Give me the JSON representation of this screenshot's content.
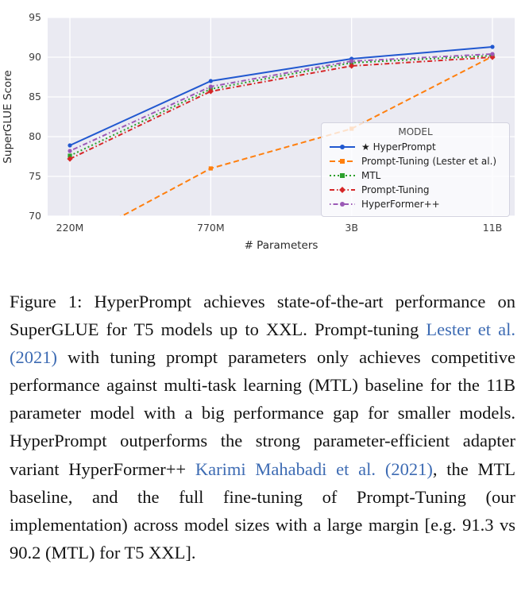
{
  "figure": {
    "citation_color": "#3d6bb3",
    "caption_segments": [
      {
        "style": "normal",
        "text": "Figure 1:  HyperPrompt achieves state-of-the-art performance on SuperGLUE for T5 models up to XXL. Prompt-tuning "
      },
      {
        "style": "cite",
        "text": "Lester et al. (2021)"
      },
      {
        "style": "normal",
        "text": " with tuning prompt parameters only achieves competitive performance against multi-task learning (MTL) baseline for the 11B parameter model with a big performance gap for smaller models. HyperPrompt outperforms the strong parameter-efficient adapter variant HyperFormer++ "
      },
      {
        "style": "cite",
        "text": "Karimi Mahabadi et al. (2021)"
      },
      {
        "style": "normal",
        "text": ", the MTL baseline, and the full fine-tuning of Prompt-Tuning (our implementation) across model sizes with a large margin [e.g. 91.3 vs 90.2 (MTL) for T5 XXL]."
      }
    ]
  },
  "chart_data": {
    "type": "line",
    "title": "",
    "xlabel": "# Parameters",
    "ylabel": "SuperGLUE Score",
    "categories": [
      "220M",
      "770M",
      "3B",
      "11B"
    ],
    "yticks": [
      70,
      75,
      80,
      85,
      90,
      95
    ],
    "ylim": [
      70,
      95
    ],
    "grid": true,
    "plot_bg": "#eaeaf2",
    "legend_title": "MODEL",
    "legend_position": "center-right",
    "series": [
      {
        "name": "★ HyperPrompt",
        "color": "#2158d0",
        "dash": "",
        "marker": "circle",
        "values": [
          78.9,
          87.0,
          89.8,
          91.3
        ]
      },
      {
        "name": "Prompt-Tuning (Lester et al.)",
        "color": "#ff7f0e",
        "dash": "7 4",
        "marker": "square",
        "values": [
          66.5,
          76.0,
          81.0,
          90.1
        ]
      },
      {
        "name": "MTL",
        "color": "#2ca02c",
        "dash": "2 3",
        "marker": "square",
        "values": [
          77.6,
          86.0,
          89.3,
          90.2
        ]
      },
      {
        "name": "Prompt-Tuning",
        "color": "#d62728",
        "dash": "6 3 1.5 3",
        "marker": "diamond",
        "values": [
          77.2,
          85.7,
          88.9,
          90.0
        ]
      },
      {
        "name": "HyperFormer++",
        "color": "#9b59b6",
        "dash": "1.5 3 6 3",
        "marker": "circle",
        "values": [
          78.2,
          86.3,
          89.5,
          90.4
        ]
      }
    ]
  }
}
